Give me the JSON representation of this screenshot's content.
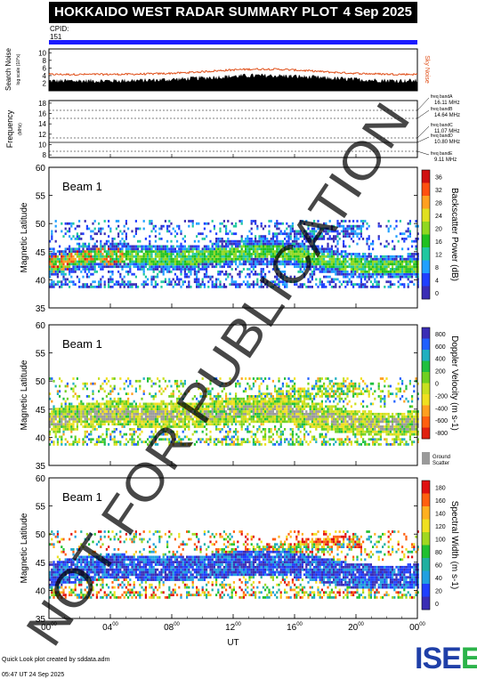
{
  "header": {
    "title": "HOKKAIDO WEST RADAR SUMMARY PLOT",
    "date": "4 Sep 2025"
  },
  "cpid": {
    "label": "CPID:",
    "value": "151"
  },
  "noise_panel": {
    "ylabel": "Search Noise",
    "ylabel_sub": "log scale (10^x)",
    "right_label": "Sky Noise",
    "ticks": [
      "2",
      "4",
      "6",
      "8",
      "10"
    ]
  },
  "freq_panel": {
    "ylabel": "Frequency",
    "units": "(MHz)",
    "ticks": [
      "8",
      "10",
      "12",
      "14",
      "16",
      "18"
    ],
    "bands": [
      {
        "name": "freq bandA",
        "freq": "16.11 MHz"
      },
      {
        "name": "freq bandB",
        "freq": "14.64 MHz"
      },
      {
        "name": "freq bandC",
        "freq": "11.07 MHz"
      },
      {
        "name": "freq bandD",
        "freq": "10.80 MHz"
      },
      {
        "name": "freq bandE",
        "freq": "9.11 MHz"
      }
    ]
  },
  "chart_data": [
    {
      "type": "heatmap",
      "title": "Beam 1",
      "ylabel": "Magnetic Latitude",
      "ylim": [
        35,
        60
      ],
      "yticks": [
        "35",
        "40",
        "45",
        "50",
        "55",
        "60"
      ],
      "colorbar_label": "Backscatter Power (dB)",
      "colorbar_ticks": [
        "0",
        "4",
        "8",
        "12",
        "16",
        "20",
        "24",
        "28",
        "32",
        "36"
      ]
    },
    {
      "type": "heatmap",
      "title": "Beam 1",
      "ylabel": "Magnetic Latitude",
      "ylim": [
        35,
        60
      ],
      "yticks": [
        "35",
        "40",
        "45",
        "50",
        "55",
        "60"
      ],
      "colorbar_label": "Doppler Velocity (m s-1)",
      "colorbar_ticks": [
        "-800",
        "-600",
        "-400",
        "-200",
        "0",
        "200",
        "400",
        "600",
        "800"
      ],
      "extra_legend": "Ground Scatter"
    },
    {
      "type": "heatmap",
      "title": "Beam 1",
      "ylabel": "Magnetic Latitude",
      "ylim": [
        35,
        60
      ],
      "yticks": [
        "35",
        "40",
        "45",
        "50",
        "55",
        "60"
      ],
      "colorbar_label": "Spectral Width (m s-1)",
      "colorbar_ticks": [
        "0",
        "20",
        "40",
        "60",
        "80",
        "100",
        "120",
        "140",
        "160",
        "180"
      ]
    }
  ],
  "xaxis": {
    "label": "UT",
    "ticks": [
      "00",
      "04",
      "08",
      "12",
      "16",
      "20",
      "00"
    ],
    "tick_sup": "00"
  },
  "watermark": "NOT FOR PUBLICATION",
  "footer": {
    "line1": "Quick Look plot created by sddata.adm",
    "line2": "05:47 UT 24 Sep 2025"
  },
  "logo": "ISEE"
}
